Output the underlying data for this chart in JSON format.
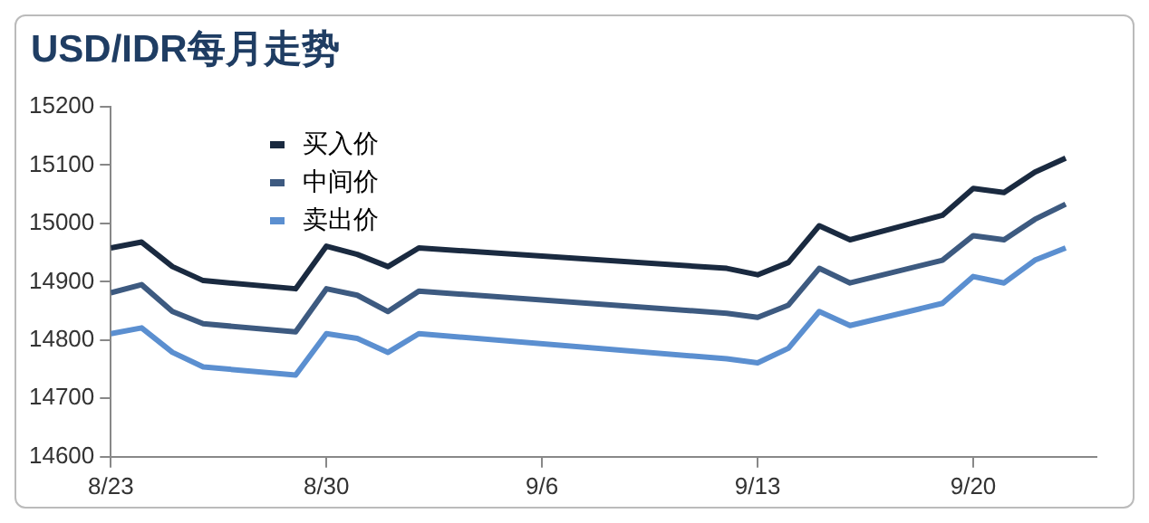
{
  "chart_data": {
    "type": "line",
    "title": "USD/IDR每月走势",
    "x": [
      "--08-23",
      "--08-24",
      "--08-25",
      "--08-26",
      "--08-29",
      "--08-30",
      "--08-31",
      "--09-01",
      "--09-02",
      "--09-12",
      "--09-13",
      "--09-14",
      "--09-15",
      "--09-16",
      "--09-19",
      "--09-20",
      "--09-21",
      "--09-22",
      "--09-23"
    ],
    "series": [
      {
        "name": "买入价",
        "color": "#1a2a40",
        "values": [
          14958,
          14968,
          14926,
          14902,
          14888,
          14961,
          14947,
          14926,
          14958,
          14923,
          14912,
          14933,
          14996,
          14972,
          15014,
          15060,
          15053,
          15088,
          15112
        ]
      },
      {
        "name": "中间价",
        "color": "#3d5a80",
        "values": [
          14881,
          14895,
          14849,
          14828,
          14814,
          14888,
          14877,
          14849,
          14884,
          14846,
          14839,
          14860,
          14923,
          14898,
          14937,
          14979,
          14972,
          15007,
          15033
        ]
      },
      {
        "name": "卖出价",
        "color": "#5b8fd0",
        "values": [
          14811,
          14821,
          14779,
          14754,
          14740,
          14811,
          14803,
          14779,
          14811,
          14768,
          14761,
          14786,
          14849,
          14825,
          14863,
          14909,
          14898,
          14937,
          14958
        ]
      }
    ],
    "xlim": [
      "--08-23",
      "--09-24"
    ],
    "xticks": [
      {
        "value": "--08-23",
        "label": "8/23"
      },
      {
        "value": "--08-30",
        "label": "8/30"
      },
      {
        "value": "--09-06",
        "label": "9/6"
      },
      {
        "value": "--09-13",
        "label": "9/13"
      },
      {
        "value": "--09-20",
        "label": "9/20"
      }
    ],
    "ylim": [
      14600,
      15200
    ],
    "yticks": [
      14600,
      14700,
      14800,
      14900,
      15000,
      15100,
      15200
    ],
    "grid": false,
    "legend": "top left",
    "marker": "none",
    "line_style": "solid"
  }
}
